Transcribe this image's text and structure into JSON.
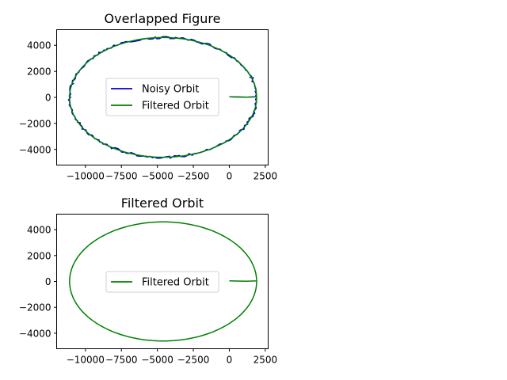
{
  "chart_data": [
    {
      "type": "line",
      "title": "Overlapped Figure",
      "xlabel": "",
      "ylabel": "",
      "xlim": [
        -12000,
        2700
      ],
      "ylim": [
        -5200,
        5200
      ],
      "xticks": [
        -10000,
        -7500,
        -5000,
        -2500,
        0,
        2500
      ],
      "xtick_labels": [
        "−10000",
        "−7500",
        "−5000",
        "−2500",
        "0",
        "2500"
      ],
      "yticks": [
        -4000,
        -2000,
        0,
        2000,
        4000
      ],
      "ytick_labels": [
        "−4000",
        "−2000",
        "0",
        "2000",
        "4000"
      ],
      "grid": false,
      "legend_position": "center",
      "orbit": {
        "center_x": -4600,
        "center_y": 0,
        "semi_major": 6500,
        "semi_minor": 4600
      },
      "series": [
        {
          "name": "Noisy Orbit",
          "color": "#0000cc",
          "noise": 90,
          "tail": [
            [
              0,
              50
            ],
            [
              1200,
              20
            ],
            [
              1900,
              40
            ]
          ]
        },
        {
          "name": "Filtered Orbit",
          "color": "#008000",
          "noise": 0,
          "tail": [
            [
              0,
              50
            ],
            [
              1200,
              20
            ],
            [
              1900,
              40
            ]
          ]
        }
      ]
    },
    {
      "type": "line",
      "title": "Filtered Orbit",
      "xlabel": "",
      "ylabel": "",
      "xlim": [
        -12000,
        2700
      ],
      "ylim": [
        -5200,
        5200
      ],
      "xticks": [
        -10000,
        -7500,
        -5000,
        -2500,
        0,
        2500
      ],
      "xtick_labels": [
        "−10000",
        "−7500",
        "−5000",
        "−2500",
        "0",
        "2500"
      ],
      "yticks": [
        -4000,
        -2000,
        0,
        2000,
        4000
      ],
      "ytick_labels": [
        "−4000",
        "−2000",
        "0",
        "2000",
        "4000"
      ],
      "grid": false,
      "legend_position": "center",
      "orbit": {
        "center_x": -4600,
        "center_y": 0,
        "semi_major": 6500,
        "semi_minor": 4600
      },
      "series": [
        {
          "name": "Filtered Orbit",
          "color": "#008000",
          "noise": 0,
          "tail": [
            [
              0,
              50
            ],
            [
              1200,
              20
            ],
            [
              1900,
              40
            ]
          ]
        }
      ]
    }
  ]
}
